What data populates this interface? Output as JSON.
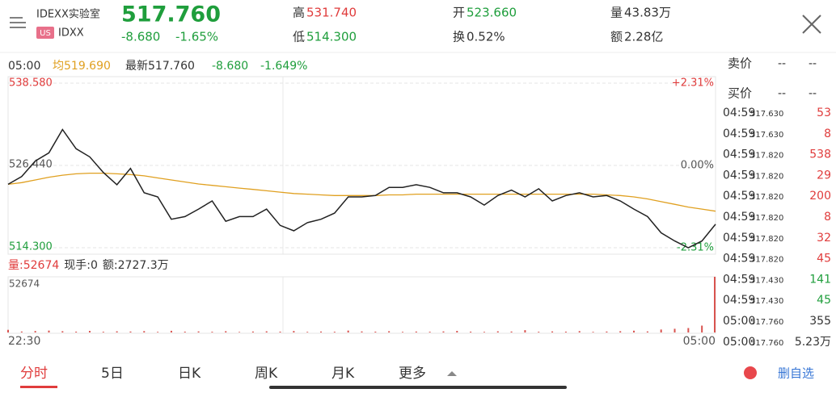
{
  "header": {
    "name": "IDEXX实验室",
    "market": "US",
    "symbol": "IDXX",
    "price": "517.760",
    "change": "-8.680",
    "change_pct": "-1.65%",
    "high_label": "高",
    "high": "531.740",
    "low_label": "低",
    "low": "514.300",
    "open_label": "开",
    "open": "523.660",
    "turnover_label": "换",
    "turnover": "0.52%",
    "volume_label": "量",
    "volume": "43.83万",
    "amount_label": "额",
    "amount": "2.28亿"
  },
  "info_bar": {
    "time": "05:00",
    "avg_label": "均",
    "avg": "519.690",
    "latest_label": "最新",
    "latest": "517.760",
    "change": "-8.680",
    "change_pct": "-1.649%"
  },
  "volume_info": {
    "vol_label": "量:",
    "vol": "52674",
    "hand_label": "现手:",
    "hand": "0",
    "amt_label": "额:",
    "amt": "2727.3万"
  },
  "order_book": {
    "ask_label": "卖价",
    "ask_price": "--",
    "ask_size": "--",
    "bid_label": "买价",
    "bid_price": "--",
    "bid_size": "--",
    "trades": [
      {
        "time": "04:59",
        "price": "517.630",
        "size": "53",
        "color": "#e03c3c"
      },
      {
        "time": "04:59",
        "price": "517.630",
        "size": "8",
        "color": "#e03c3c"
      },
      {
        "time": "04:59",
        "price": "517.820",
        "size": "538",
        "color": "#e03c3c"
      },
      {
        "time": "04:59",
        "price": "517.820",
        "size": "29",
        "color": "#e03c3c"
      },
      {
        "time": "04:59",
        "price": "517.820",
        "size": "200",
        "color": "#e03c3c"
      },
      {
        "time": "04:59",
        "price": "517.820",
        "size": "8",
        "color": "#e03c3c"
      },
      {
        "time": "04:59",
        "price": "517.820",
        "size": "32",
        "color": "#e03c3c"
      },
      {
        "time": "04:59",
        "price": "517.820",
        "size": "45",
        "color": "#e03c3c"
      },
      {
        "time": "04:59",
        "price": "517.430",
        "size": "141",
        "color": "#1f9e3c"
      },
      {
        "time": "04:59",
        "price": "517.430",
        "size": "45",
        "color": "#1f9e3c"
      },
      {
        "time": "05:00",
        "price": "517.760",
        "size": "355",
        "color": "#333333"
      },
      {
        "time": "05:00",
        "price": "517.760",
        "size": "5.23万",
        "color": "#333333"
      }
    ]
  },
  "tabs": [
    "分时",
    "5日",
    "日K",
    "周K",
    "月K",
    "更多"
  ],
  "remove_watchlist": "删自选",
  "chart_data": [
    {
      "type": "line",
      "categories": [
        "22:30",
        null,
        null,
        null,
        null,
        null,
        null,
        null,
        null,
        null,
        null,
        null,
        null,
        null,
        null,
        null,
        null,
        null,
        null,
        null,
        null,
        null,
        null,
        null,
        null,
        null,
        null,
        null,
        null,
        null,
        null,
        null,
        null,
        null,
        null,
        null,
        null,
        null,
        null,
        null,
        null,
        null,
        null,
        null,
        null,
        null,
        null,
        null,
        null,
        null,
        null,
        null,
        "05:00"
      ],
      "series": [
        {
          "name": "最新",
          "color": "#222222",
          "values": [
            523.66,
            524.8,
            527.1,
            528.3,
            531.74,
            528.9,
            527.7,
            525.4,
            523.6,
            526.0,
            522.4,
            521.8,
            518.5,
            518.9,
            520.0,
            521.2,
            518.2,
            518.9,
            518.9,
            520.0,
            517.6,
            516.8,
            518.0,
            518.5,
            519.4,
            521.8,
            521.8,
            522.0,
            523.2,
            523.2,
            523.6,
            523.2,
            522.4,
            522.4,
            521.8,
            520.6,
            522.0,
            522.8,
            521.8,
            523.0,
            521.2,
            522.0,
            522.4,
            521.8,
            522.0,
            521.2,
            520.0,
            518.9,
            516.5,
            515.3,
            514.3,
            515.3,
            517.76
          ]
        },
        {
          "name": "均",
          "color": "#e0a020",
          "values": [
            523.66,
            523.9,
            524.3,
            524.7,
            525.0,
            525.2,
            525.3,
            525.3,
            525.2,
            525.1,
            524.9,
            524.6,
            524.3,
            524.0,
            523.7,
            523.5,
            523.3,
            523.1,
            522.9,
            522.7,
            522.5,
            522.3,
            522.2,
            522.1,
            522.0,
            522.0,
            522.0,
            522.0,
            522.1,
            522.1,
            522.2,
            522.2,
            522.2,
            522.2,
            522.2,
            522.2,
            522.2,
            522.2,
            522.2,
            522.2,
            522.2,
            522.2,
            522.2,
            522.2,
            522.1,
            522.0,
            521.8,
            521.5,
            521.1,
            520.7,
            520.3,
            520.0,
            519.69
          ]
        }
      ],
      "ylim": [
        514.3,
        538.58
      ],
      "yticks": [
        {
          "value": 538.58,
          "label": "538.580"
        },
        {
          "value": 526.44,
          "label": "526.440"
        },
        {
          "value": 514.3,
          "label": "514.300"
        }
      ],
      "y2lim": [
        -2.31,
        2.31
      ],
      "y2ticks": [
        {
          "value": 2.31,
          "label": "+2.31%"
        },
        {
          "value": 0,
          "label": "0.00%"
        },
        {
          "value": -2.31,
          "label": "-2.31%"
        }
      ],
      "grid": true
    },
    {
      "type": "bar",
      "color": "#d9534f",
      "values": [
        2500,
        900,
        1400,
        1800,
        1200,
        800,
        1500,
        700,
        1100,
        900,
        1300,
        600,
        1600,
        800,
        1000,
        700,
        1200,
        500,
        900,
        1100,
        800,
        1400,
        600,
        900,
        700,
        1800,
        1000,
        800,
        1200,
        600,
        900,
        700,
        1000,
        1500,
        800,
        600,
        1100,
        900,
        2200,
        700,
        1000,
        800,
        1300,
        600,
        900,
        1200,
        1700,
        1000,
        2800,
        3500,
        4200,
        6500,
        52674
      ],
      "ylim": [
        0,
        52674
      ],
      "yticks": [
        52674
      ]
    }
  ]
}
